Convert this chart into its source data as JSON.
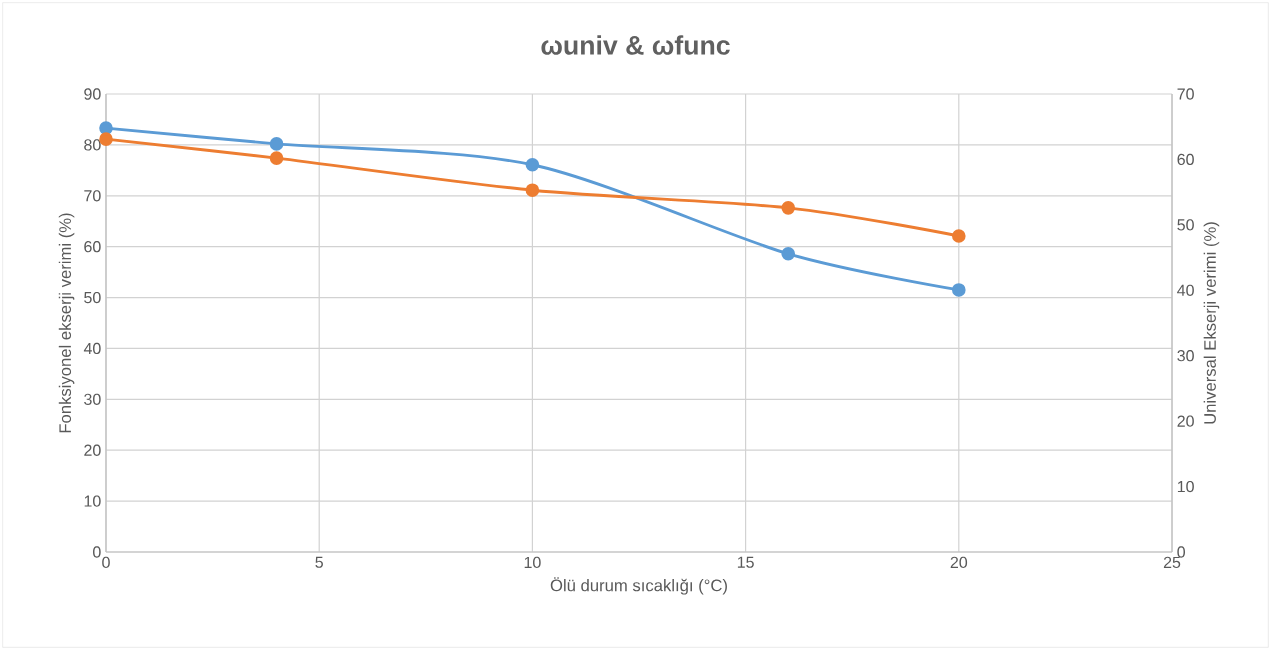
{
  "chart_data": {
    "type": "line",
    "title": "ωuniv & ωfunc",
    "xlabel": "Ölü durum sıcaklığı (°C)",
    "ylabel": "Fonksiyonel ekserji verimi (%)",
    "y2label": "Universal  Ekserji verimi (%)",
    "x": [
      0,
      4,
      10,
      16,
      20
    ],
    "series": [
      {
        "color": "#5b9bd5",
        "values": [
          83.3,
          80.2,
          76.1,
          58.6,
          51.5
        ]
      },
      {
        "color": "#ed7d31",
        "axis": "y2",
        "values": [
          63.1,
          60.2,
          55.3,
          52.6,
          48.3
        ]
      }
    ],
    "xlim": [
      0,
      25
    ],
    "xticks": [
      0,
      5,
      10,
      15,
      20,
      25
    ],
    "ylim": [
      0,
      90
    ],
    "yticks": [
      0,
      10,
      20,
      30,
      40,
      50,
      60,
      70,
      80,
      90
    ],
    "y2lim": [
      0,
      70
    ],
    "y2ticks": [
      0,
      10,
      20,
      30,
      40,
      50,
      60,
      70
    ],
    "grid": true,
    "marker": "circle"
  }
}
